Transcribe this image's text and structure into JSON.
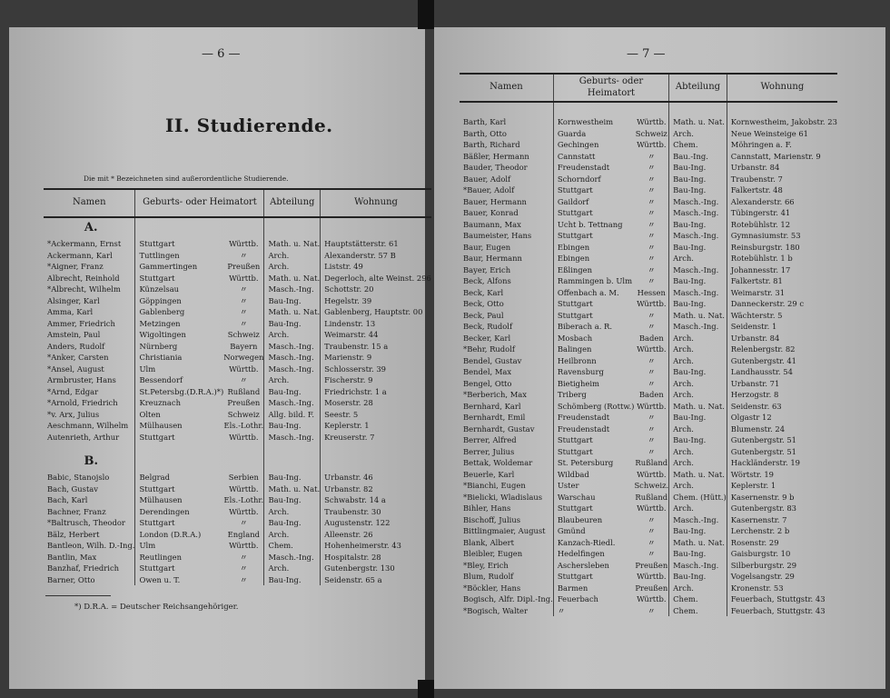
{
  "left_page": {
    "page_number": "— 6 —",
    "title": "II. Studierende.",
    "note": "Die mit * Bezeichneten sind außerordentliche Studierende.",
    "headers": [
      "Namen",
      "Geburts- oder Heimatort",
      "Abteilung",
      "Wohnung"
    ],
    "sections": [
      {
        "letter": "A.",
        "rows": [
          [
            "*Ackermann, Ernst",
            "Stuttgart",
            "Württb.",
            "Math. u. Nat.",
            "Hauptstätterstr. 61"
          ],
          [
            "Ackermann, Karl",
            "Tuttlingen",
            "〃",
            "Arch.",
            "Alexanderstr. 57 B"
          ],
          [
            "*Aigner, Franz",
            "Gammertingen",
            "Preußen",
            "Arch.",
            "Liststr. 49"
          ],
          [
            "Albrecht, Reinhold",
            "Stuttgart",
            "Württb.",
            "Math. u. Nat.",
            "Degerloch, alte Weinst. 296"
          ],
          [
            "*Albrecht, Wilhelm",
            "Künzelsau",
            "〃",
            "Masch.-Ing.",
            "Schottstr. 20"
          ],
          [
            "Alsinger, Karl",
            "Göppingen",
            "〃",
            "Bau-Ing.",
            "Hegelstr. 39"
          ],
          [
            "Amma, Karl",
            "Gablenberg",
            "〃",
            "Math. u. Nat.",
            "Gablenberg, Hauptstr. 00"
          ],
          [
            "Ammer, Friedrich",
            "Metzingen",
            "〃",
            "Bau-Ing.",
            "Lindenstr. 13"
          ],
          [
            "Amstein, Paul",
            "Wigoltingen",
            "Schweiz",
            "Arch.",
            "Weimarstr. 44"
          ],
          [
            "Anders, Rudolf",
            "Nürnberg",
            "Bayern",
            "Masch.-Ing.",
            "Traubenstr. 15 a"
          ],
          [
            "*Anker, Carsten",
            "Christiania",
            "Norwegen",
            "Masch.-Ing.",
            "Marienstr. 9"
          ],
          [
            "*Ansel, August",
            "Ulm",
            "Württb.",
            "Masch.-Ing.",
            "Schlosserstr. 39"
          ],
          [
            "Armbruster, Hans",
            "Bessendorf",
            "〃",
            "Arch.",
            "Fischerstr. 9"
          ],
          [
            "*Arnd, Edgar",
            "St.Petersbg.(D.R.A.)*)",
            "Rußland",
            "Bau-Ing.",
            "Friedrichstr. 1 a"
          ],
          [
            "*Arnold, Friedrich",
            "Kreuznach",
            "Preußen",
            "Masch.-Ing.",
            "Moserstr. 28"
          ],
          [
            "*v. Arx, Julius",
            "Olten",
            "Schweiz",
            "Allg. bild. F.",
            "Seestr. 5"
          ],
          [
            "Aeschmann, Wilhelm",
            "Mülhausen",
            "Els.-Lothr.",
            "Bau-Ing.",
            "Keplerstr. 1"
          ],
          [
            "Autenrieth, Arthur",
            "Stuttgart",
            "Württb.",
            "Masch.-Ing.",
            "Kreuserstr. 7"
          ]
        ]
      },
      {
        "letter": "B.",
        "rows": [
          [
            "Babic, Stanojslo",
            "Belgrad",
            "Serbien",
            "Bau-Ing.",
            "Urbanstr. 46"
          ],
          [
            "Bach, Gustav",
            "Stuttgart",
            "Württb.",
            "Math. u. Nat.",
            "Urbanstr. 82"
          ],
          [
            "Bach, Karl",
            "Mülhausen",
            "Els.-Lothr.",
            "Bau-Ing.",
            "Schwabstr. 14 a"
          ],
          [
            "Bachner, Franz",
            "Derendingen",
            "Württb.",
            "Arch.",
            "Traubenstr. 30"
          ],
          [
            "*Baltrusch, Theodor",
            "Stuttgart",
            "〃",
            "Bau-Ing.",
            "Augustenstr. 122"
          ],
          [
            "Bälz, Herbert",
            "London (D.R.A.)",
            "England",
            "Arch.",
            "Alleenstr. 26"
          ],
          [
            "Bantleon, Wilh. D.-Ing.",
            "Ulm",
            "Württb.",
            "Chem.",
            "Hohenheimerstr. 43"
          ],
          [
            "Bantlin, Max",
            "Reutlingen",
            "〃",
            "Masch.-Ing.",
            "Hospitalstr. 28"
          ],
          [
            "Banzhaf, Friedrich",
            "Stuttgart",
            "〃",
            "Arch.",
            "Gutenbergstr. 130"
          ],
          [
            "Barner, Otto",
            "Owen u. T.",
            "〃",
            "Bau-Ing.",
            "Seidenstr. 65 a"
          ]
        ]
      }
    ],
    "footnote": "*) D.R.A. = Deutscher Reichsangehöriger."
  },
  "right_page": {
    "page_number": "— 7 —",
    "headers": [
      "Namen",
      "Geburts- oder Heimatort",
      "Abteilung",
      "Wohnung"
    ],
    "rows": [
      [
        "Barth, Karl",
        "Kornwestheim",
        "Württb.",
        "Math. u. Nat.",
        "Kornwestheim, Jakobstr. 23"
      ],
      [
        "Barth, Otto",
        "Guarda",
        "Schweiz",
        "Arch.",
        "Neue Weinsteige 61"
      ],
      [
        "Barth, Richard",
        "Gechingen",
        "Württb.",
        "Chem.",
        "Möhringen a. F."
      ],
      [
        "Bäßler, Hermann",
        "Cannstatt",
        "〃",
        "Bau.-Ing.",
        "Cannstatt, Marienstr. 9"
      ],
      [
        "Bauder, Theodor",
        "Freudenstadt",
        "〃",
        "Bau-Ing.",
        "Urbanstr. 84"
      ],
      [
        "Bauer, Adolf",
        "Schorndorf",
        "〃",
        "Bau-Ing.",
        "Traubenstr. 7"
      ],
      [
        "*Bauer, Adolf",
        "Stuttgart",
        "〃",
        "Bau-Ing.",
        "Falkertstr. 48"
      ],
      [
        "Bauer, Hermann",
        "Gaildorf",
        "〃",
        "Masch.-Ing.",
        "Alexanderstr. 66"
      ],
      [
        "Bauer, Konrad",
        "Stuttgart",
        "〃",
        "Masch.-Ing.",
        "Tübingerstr. 41"
      ],
      [
        "Baumann, Max",
        "Ucht b. Tettnang",
        "〃",
        "Bau-Ing.",
        "Rotebühlstr. 12"
      ],
      [
        "Baumeister, Hans",
        "Stuttgart",
        "〃",
        "Masch.-Ing.",
        "Gymnasiumstr. 53"
      ],
      [
        "Baur, Eugen",
        "Ebingen",
        "〃",
        "Bau-Ing.",
        "Reinsburgstr. 180"
      ],
      [
        "Baur, Hermann",
        "Ebingen",
        "〃",
        "Arch.",
        "Rotebühlstr. 1 b"
      ],
      [
        "Bayer, Erich",
        "Eßlingen",
        "〃",
        "Masch.-Ing.",
        "Johannesstr. 17"
      ],
      [
        "Beck, Alfons",
        "Rammingen b. Ulm",
        "〃",
        "Bau-Ing.",
        "Falkertstr. 81"
      ],
      [
        "Beck, Karl",
        "Offenbach a. M.",
        "Hessen",
        "Masch.-Ing.",
        "Weimarstr. 31"
      ],
      [
        "Beck, Otto",
        "Stuttgart",
        "Württb.",
        "Bau-Ing.",
        "Danneckerstr. 29 c"
      ],
      [
        "Beck, Paul",
        "Stuttgart",
        "〃",
        "Math. u. Nat.",
        "Wächterstr. 5"
      ],
      [
        "Beck, Rudolf",
        "Biberach a. R.",
        "〃",
        "Masch.-Ing.",
        "Seidenstr. 1"
      ],
      [
        "Becker, Karl",
        "Mosbach",
        "Baden",
        "Arch.",
        "Urbanstr. 84"
      ],
      [
        "*Behr, Rudolf",
        "Balingen",
        "Württb.",
        "Arch.",
        "Relenbergstr. 82"
      ],
      [
        "Bendel, Gustav",
        "Heilbronn",
        "〃",
        "Arch.",
        "Gutenbergstr. 41"
      ],
      [
        "Bendel, Max",
        "Ravensburg",
        "〃",
        "Bau-Ing.",
        "Landhausstr. 54"
      ],
      [
        "Bengel, Otto",
        "Bietigheim",
        "〃",
        "Arch.",
        "Urbanstr. 71"
      ],
      [
        "*Berberich, Max",
        "Triberg",
        "Baden",
        "Arch.",
        "Herzogstr. 8"
      ],
      [
        "Bernhard, Karl",
        "Schömberg (Rottw.)",
        "Württb.",
        "Math. u. Nat.",
        "Seidenstr. 63"
      ],
      [
        "Bernhardt, Emil",
        "Freudenstadt",
        "〃",
        "Bau-Ing.",
        "Olgastr 12"
      ],
      [
        "Bernhardt, Gustav",
        "Freudenstadt",
        "〃",
        "Arch.",
        "Blumenstr. 24"
      ],
      [
        "Berrer, Alfred",
        "Stuttgart",
        "〃",
        "Bau-Ing.",
        "Gutenbergstr. 51"
      ],
      [
        "Berrer, Julius",
        "Stuttgart",
        "〃",
        "Arch.",
        "Gutenbergstr. 51"
      ],
      [
        "Bettak, Woldemar",
        "St. Petersburg",
        "Rußland",
        "Arch.",
        "Hackländerstr. 19"
      ],
      [
        "Beuerle, Karl",
        "Wildbad",
        "Württb.",
        "Math. u. Nat.",
        "Wörtstr. 19"
      ],
      [
        "*Bianchi, Eugen",
        "Uster",
        "Schweiz.",
        "Arch.",
        "Keplerstr. 1"
      ],
      [
        "*Bielicki, Wladislaus",
        "Warschau",
        "Rußland",
        "Chem. (Hütt.)",
        "Kasernenstr. 9 b"
      ],
      [
        "Bihler, Hans",
        "Stuttgart",
        "Württb.",
        "Arch.",
        "Gutenbergstr. 83"
      ],
      [
        "Bischoff, Julius",
        "Blaubeuren",
        "〃",
        "Masch.-Ing.",
        "Kasernenstr. 7"
      ],
      [
        "Bittlingmaier, August",
        "Gmünd",
        "〃",
        "Bau-Ing.",
        "Lerchenstr. 2 b"
      ],
      [
        "Blank, Albert",
        "Kanzach-Riedl.",
        "〃",
        "Math. u. Nat.",
        "Rosenstr. 29"
      ],
      [
        "Bleibler, Eugen",
        "Hedelfingen",
        "〃",
        "Bau-Ing.",
        "Gaisburgstr. 10"
      ],
      [
        "*Bley, Erich",
        "Aschersleben",
        "Preußen",
        "Masch.-Ing.",
        "Silberburgstr. 29"
      ],
      [
        "Blum, Rudolf",
        "Stuttgart",
        "Württb.",
        "Bau-Ing.",
        "Vogelsangstr. 29"
      ],
      [
        "*Böckler, Hans",
        "Barmen",
        "Preußen",
        "Arch.",
        "Kronenstr. 53"
      ],
      [
        "Bogisch, Alfr. Dipl.-Ing.",
        "Feuerbach",
        "Württb.",
        "Chem.",
        "Feuerbach, Stuttgstr. 43"
      ],
      [
        "*Bogisch, Walter",
        "〃",
        "〃",
        "Chem.",
        "Feuerbach, Stuttgstr. 43"
      ]
    ]
  }
}
